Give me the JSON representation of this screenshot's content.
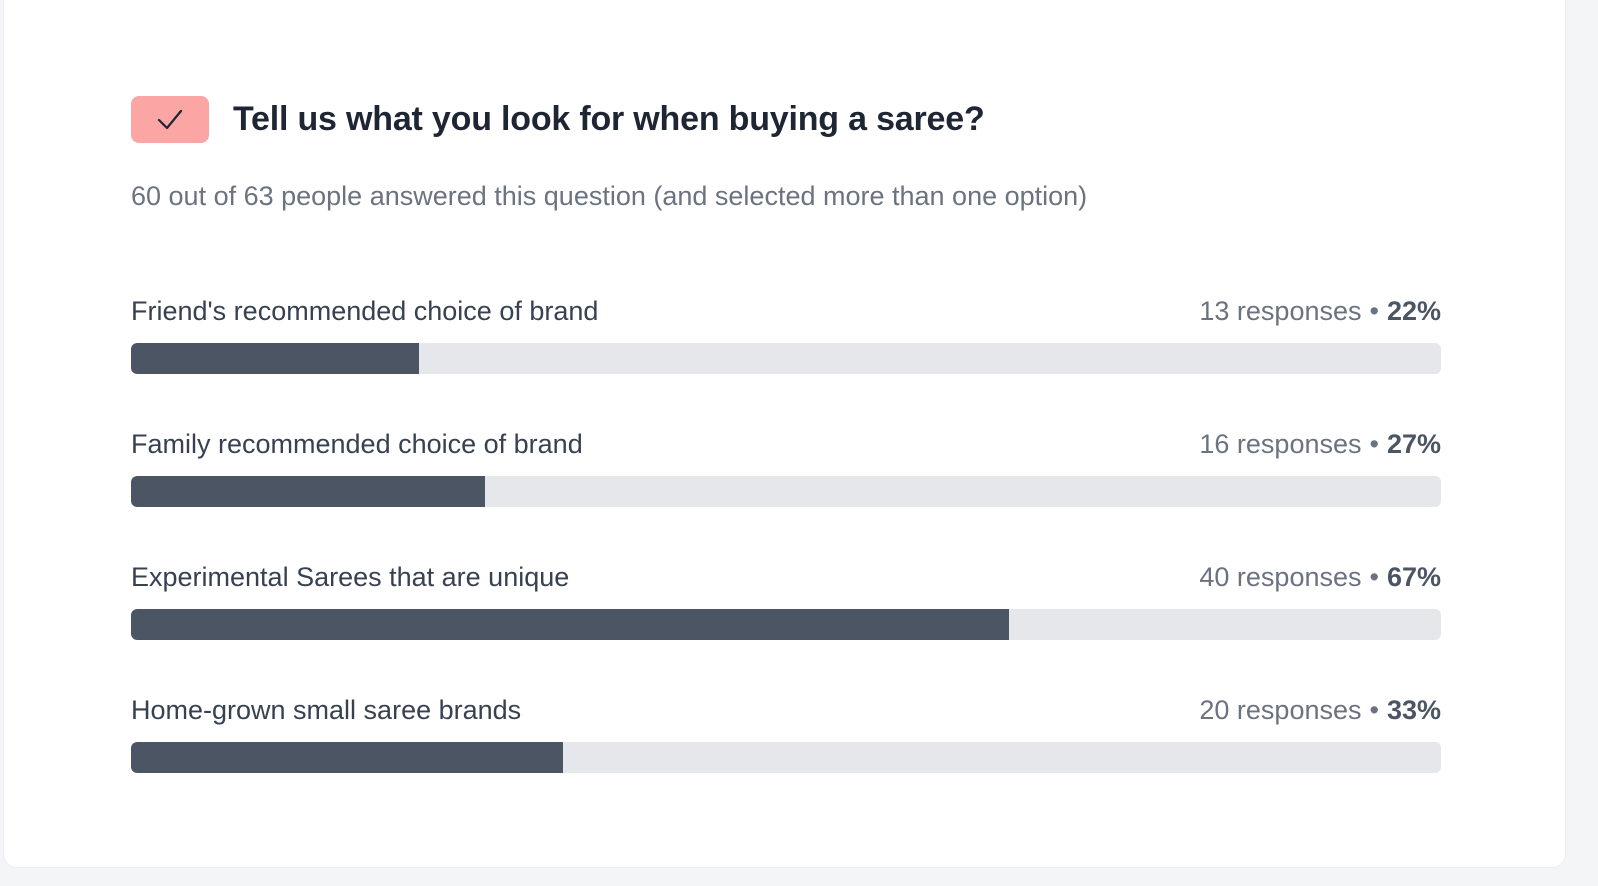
{
  "question": {
    "icon": "checkmark-icon",
    "badge_color": "#fca5a5",
    "title": "Tell us what you look for when buying a saree?",
    "summary": "60 out of 63 people answered this question (and selected more than one option)"
  },
  "separator": "•",
  "options": [
    {
      "label": "Friend's recommended choice of brand",
      "responses": "13 responses",
      "percent_label": "22%",
      "percent": 22
    },
    {
      "label": "Family recommended choice of brand",
      "responses": "16 responses",
      "percent_label": "27%",
      "percent": 27
    },
    {
      "label": "Experimental Sarees that are unique",
      "responses": "40 responses",
      "percent_label": "67%",
      "percent": 67
    },
    {
      "label": "Home-grown small saree brands",
      "responses": "20 responses",
      "percent_label": "33%",
      "percent": 33
    }
  ],
  "colors": {
    "bar_fill": "#4b5563",
    "bar_track": "#e5e7eb",
    "title": "#1e2533"
  }
}
